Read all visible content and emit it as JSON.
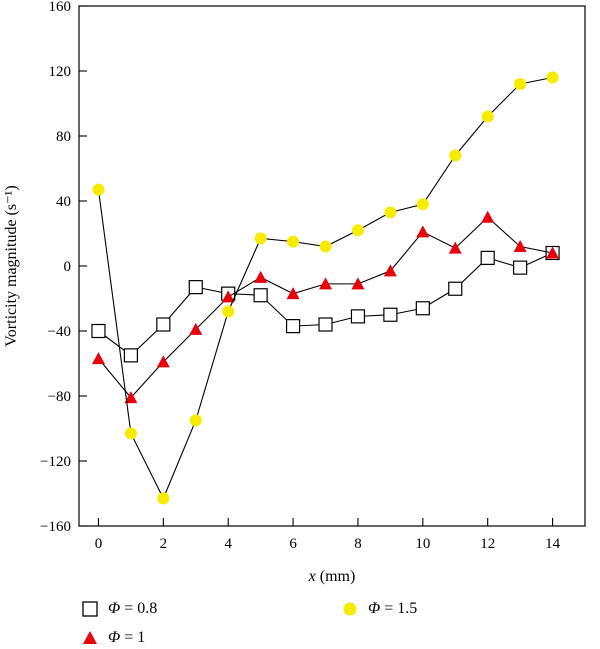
{
  "chart_data": {
    "type": "line",
    "title": "",
    "xlabel": "x (mm)",
    "xlabel_var": "x",
    "xlabel_unit": "(mm)",
    "ylabel": "Vorticity magnitude (s⁻¹)",
    "xlim": [
      -0.6,
      15.0
    ],
    "ylim": [
      -160,
      160
    ],
    "xticks": [
      0,
      2,
      4,
      6,
      8,
      10,
      12,
      14
    ],
    "yticks": [
      -160,
      -120,
      -80,
      -40,
      0,
      40,
      80,
      120,
      160
    ],
    "ytick_labels": [
      "−160",
      "−120",
      "−80",
      "−40",
      "0",
      "40",
      "80",
      "120",
      "160"
    ],
    "grid": false,
    "legend_position": "bottom",
    "x": [
      0,
      1,
      2,
      3,
      4,
      5,
      6,
      7,
      8,
      9,
      10,
      11,
      12,
      13,
      14
    ],
    "series": [
      {
        "name": "Φ = 0.8",
        "name_var": "Φ",
        "name_val": " = 0.8",
        "marker": "square-open",
        "color": "#000000",
        "values": [
          -40,
          -55,
          -36,
          -13,
          -17,
          -18,
          -37,
          -36,
          -31,
          -30,
          -26,
          -14,
          5,
          -1,
          8
        ]
      },
      {
        "name": "Φ = 1",
        "name_var": "Φ",
        "name_val": " = 1",
        "marker": "triangle",
        "color": "#e8000b",
        "values": [
          -57,
          -81,
          -59,
          -39,
          -19,
          -7,
          -17,
          -11,
          -11,
          -3,
          21,
          11,
          30,
          12,
          8
        ]
      },
      {
        "name": "Φ = 1.5",
        "name_var": "Φ",
        "name_val": " = 1.5",
        "marker": "circle",
        "color": "#f5ec00",
        "values": [
          47,
          -103,
          -143,
          -95,
          -28,
          17,
          15,
          12,
          22,
          33,
          38,
          68,
          92,
          112,
          116
        ]
      }
    ]
  }
}
